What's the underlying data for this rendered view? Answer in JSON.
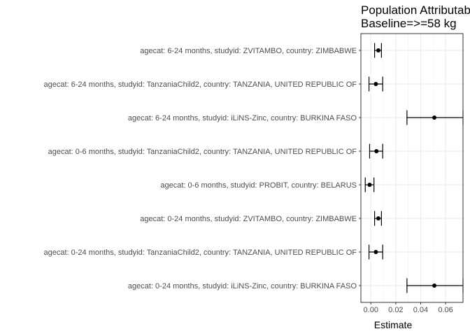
{
  "chart_data": {
    "type": "forest",
    "title": "Population Attributable",
    "subtitle": "Baseline=>=58 kg",
    "xlabel": "Estimate",
    "ylabel": "",
    "xlim": [
      -0.008,
      0.074
    ],
    "x_ticks": [
      "0.00",
      "0.02",
      "0.04",
      "0.06"
    ],
    "grid": true,
    "categories": [
      "agecat: 6-24 months, studyid: ZVITAMBO, country: ZIMBABWE",
      "agecat: 6-24 months, studyid: TanzaniaChild2, country: TANZANIA, UNITED REPUBLIC OF",
      "agecat: 6-24 months, studyid: iLiNS-Zinc, country: BURKINA FASO",
      "agecat: 0-6 months, studyid: TanzaniaChild2, country: TANZANIA, UNITED REPUBLIC OF",
      "agecat: 0-6 months, studyid: PROBIT, country: BELARUS",
      "agecat: 0-24 months, studyid: ZVITAMBO, country: ZIMBABWE",
      "agecat: 0-24 months, studyid: TanzaniaChild2, country: TANZANIA, UNITED REPUBLIC OF",
      "agecat: 0-24 months, studyid: iLiNS-Zinc, country: BURKINA FASO"
    ],
    "estimates": [
      0.006,
      0.004,
      0.051,
      0.0045,
      -0.001,
      0.006,
      0.004,
      0.051
    ],
    "lower": [
      0.003,
      -0.0015,
      0.029,
      -0.001,
      -0.0045,
      0.003,
      -0.0015,
      0.029
    ],
    "upper": [
      0.0085,
      0.0095,
      0.074,
      0.0095,
      0.0025,
      0.0085,
      0.0095,
      0.074
    ]
  }
}
